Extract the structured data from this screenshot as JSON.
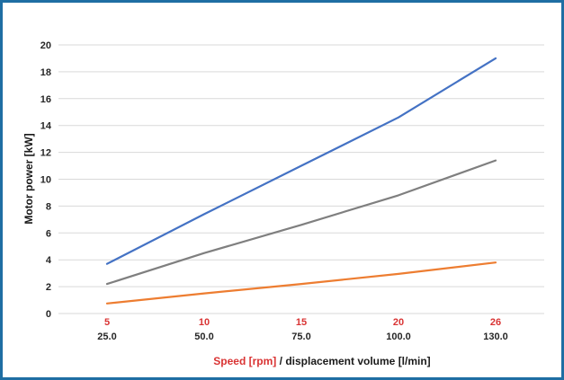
{
  "chart_data": {
    "type": "line",
    "title": "",
    "categories": [
      "5",
      "10",
      "15",
      "20",
      "26"
    ],
    "secondary_categories": [
      "25.0",
      "50.0",
      "75.0",
      "100.0",
      "130.0"
    ],
    "x": [
      25,
      50,
      75,
      100,
      130
    ],
    "xlabel_part1": "Speed [rpm]",
    "xlabel_part2": " / displacement volume [l/min]",
    "ylabel": "Motor power [kW]",
    "ylim": [
      0,
      20
    ],
    "yticks": [
      0,
      2,
      4,
      6,
      8,
      10,
      12,
      14,
      16,
      18,
      20
    ],
    "grid": true,
    "series": [
      {
        "color": "#4472c4",
        "values": [
          3.7,
          7.4,
          11.0,
          14.6,
          19.0
        ]
      },
      {
        "color": "#7f7f7f",
        "values": [
          2.2,
          4.5,
          6.6,
          8.8,
          11.4
        ]
      },
      {
        "color": "#ed7d31",
        "values": [
          0.75,
          1.5,
          2.2,
          2.95,
          3.8
        ]
      }
    ]
  }
}
